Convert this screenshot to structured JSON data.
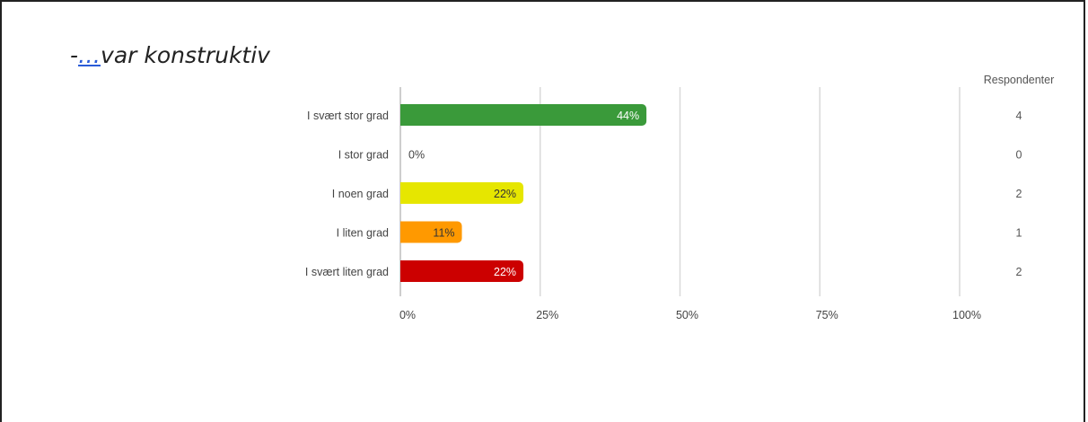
{
  "title": {
    "prefix": "-",
    "dots": "…",
    "text": "var konstruktiv"
  },
  "respondents_header": "Respondenter",
  "chart_data": {
    "type": "bar",
    "orientation": "horizontal",
    "categories": [
      "I svært stor grad",
      "I stor grad",
      "I noen grad",
      "I liten grad",
      "I svært liten grad"
    ],
    "values": [
      44,
      0,
      22,
      11,
      22
    ],
    "value_labels": [
      "44%",
      "0%",
      "22%",
      "11%",
      "22%"
    ],
    "respondents": [
      4,
      0,
      2,
      1,
      2
    ],
    "colors": [
      "#3a9a3a",
      "#3a9a3a",
      "#e6e600",
      "#ff9900",
      "#cc0000"
    ],
    "label_colors": [
      "#ffffff",
      "#444444",
      "#333333",
      "#333333",
      "#ffffff"
    ],
    "xlim": [
      0,
      100
    ],
    "xticks": [
      0,
      25,
      50,
      75,
      100
    ],
    "xtick_labels": [
      "0%",
      "25%",
      "50%",
      "75%",
      "100%"
    ],
    "grid": true
  }
}
